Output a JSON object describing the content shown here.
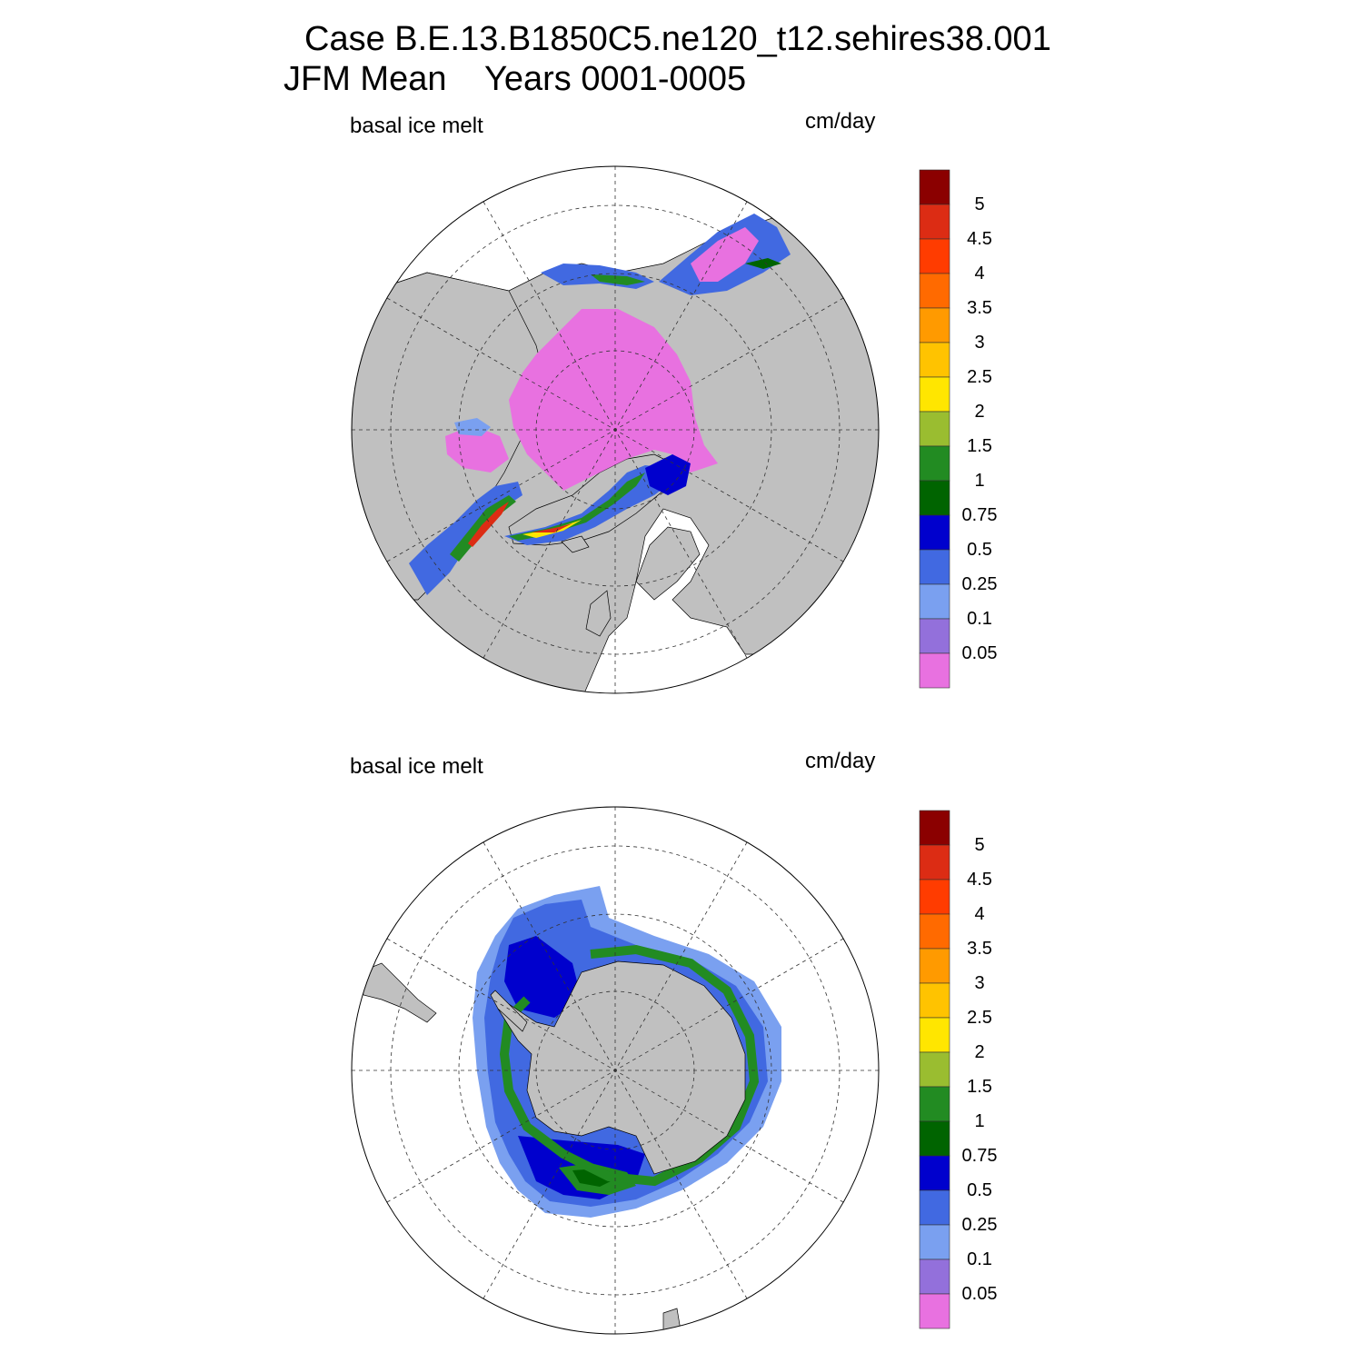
{
  "title": {
    "line1": "Case B.E.13.B1850C5.ne120_t12.sehires38.001",
    "line2": "JFM Mean    Years 0001-0005"
  },
  "panels": [
    {
      "variable": "basal ice melt",
      "units": "cm/day",
      "hemisphere": "north"
    },
    {
      "variable": "basal ice melt",
      "units": "cm/day",
      "hemisphere": "south"
    }
  ],
  "colorbar": {
    "labels": [
      "5",
      "4.5",
      "4",
      "3.5",
      "3",
      "2.5",
      "2",
      "1.5",
      "1",
      "0.75",
      "0.5",
      "0.25",
      "0.1",
      "0.05"
    ],
    "colors_top_to_bottom": [
      "#8b0000",
      "#dc2c14",
      "#ff3c00",
      "#ff6a00",
      "#ff9a00",
      "#ffc300",
      "#ffe600",
      "#9abd30",
      "#228b22",
      "#006400",
      "#0000cd",
      "#4169e1",
      "#7aa0f0",
      "#9370db",
      "#e871e0"
    ]
  },
  "colors": {
    "land": "#c0c0c0",
    "ocean": "#ffffff",
    "ice_low": "#e871e0",
    "ice_blue": "#4169e1",
    "ice_dark_blue": "#0000cd",
    "ice_light_blue": "#7aa0f0",
    "ice_green": "#228b22",
    "ice_dark_green": "#006400",
    "ice_yellow": "#ffe600",
    "ice_red": "#dc2c14"
  }
}
